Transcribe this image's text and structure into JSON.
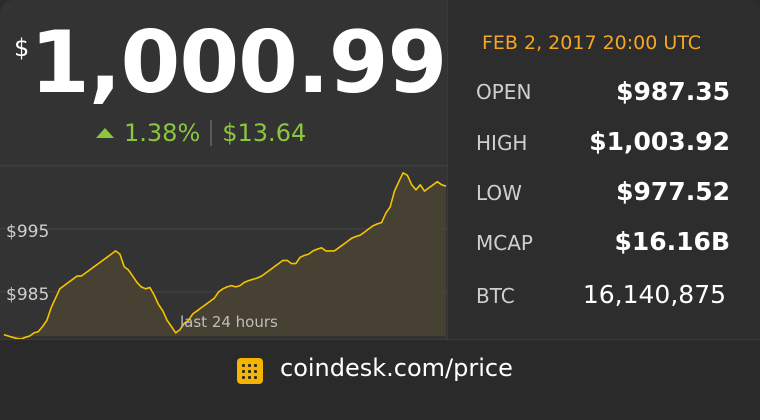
{
  "currency_symbol": "$",
  "price": "1,000.99",
  "change_percent": "1.38%",
  "change_amount": "$13.64",
  "date": "FEB 2, 2017 20:00 UTC",
  "stats": [
    {
      "label": "OPEN",
      "value": "$987.35"
    },
    {
      "label": "HIGH",
      "value": "$1,003.92"
    },
    {
      "label": "LOW",
      "value": "$977.52"
    },
    {
      "label": "MCAP",
      "value": "$16.16B"
    },
    {
      "label": "BTC",
      "value": "16,140,875"
    }
  ],
  "footer": {
    "site": "coindesk.com/price",
    "logo_icon": "coindesk-logo-icon"
  },
  "colors": {
    "accent_yellow": "#f5c400",
    "up_green": "#8cc63f",
    "date_orange": "#f5a623"
  },
  "chart_data": {
    "type": "area",
    "xlabel": "last 24 hours",
    "ylabel": "",
    "y_tick_labels": [
      "$995",
      "$985"
    ],
    "y_ticks": [
      995,
      985
    ],
    "ylim": [
      978.0,
      1008.0
    ],
    "series": [
      {
        "values": [
          978.2,
          978.0,
          977.8,
          977.6,
          977.5,
          977.8,
          978.0,
          978.5,
          978.7,
          979.5,
          980.5,
          982.5,
          984.0,
          985.5,
          986.0,
          986.5,
          987.0,
          987.5,
          987.5,
          988.0,
          988.5,
          989.0,
          989.5,
          990.0,
          990.5,
          991.0,
          991.5,
          991.0,
          989.0,
          988.5,
          987.5,
          986.5,
          985.8,
          985.5,
          985.7,
          984.5,
          983.0,
          982.0,
          980.5,
          979.5,
          978.5,
          979.0,
          980.0,
          980.5,
          981.5,
          982.0,
          982.5,
          983.0,
          983.5,
          984.0,
          985.0,
          985.5,
          985.8,
          986.0,
          985.8,
          986.0,
          986.5,
          986.8,
          987.0,
          987.2,
          987.5,
          988.0,
          988.5,
          989.0,
          989.5,
          990.0,
          990.0,
          989.5,
          989.5,
          990.5,
          990.8,
          991.0,
          991.5,
          991.8,
          992.0,
          991.5,
          991.5,
          991.5,
          992.0,
          992.5,
          993.0,
          993.5,
          993.8,
          994.0,
          994.5,
          995.0,
          995.5,
          995.8,
          996.0,
          997.5,
          998.5,
          1001.0,
          1002.5,
          1003.9,
          1003.5,
          1002.0,
          1001.2,
          1002.0,
          1001.0,
          1001.5,
          1002.0,
          1002.5,
          1002.0,
          1001.8
        ]
      }
    ]
  }
}
